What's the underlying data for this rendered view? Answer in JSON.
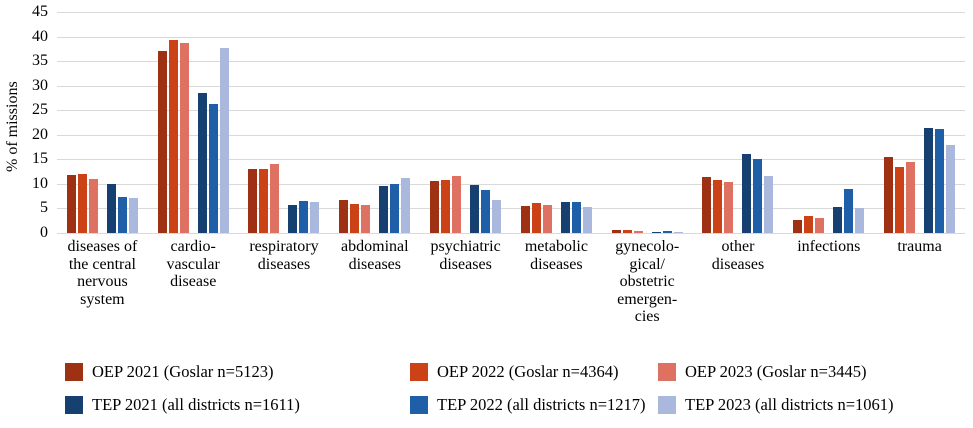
{
  "chart_data": {
    "type": "bar",
    "title": "",
    "ylabel": "% of missions",
    "xlabel": "",
    "ylim": [
      0,
      45
    ],
    "ytick_step": 5,
    "grid": true,
    "legend_position": "bottom",
    "categories": [
      "diseases of the central nervous system",
      "cardio-vascular disease",
      "respiratory diseases",
      "abdominal diseases",
      "psychiatric diseases",
      "metabolic diseases",
      "gynecological/ obstetric emergencies",
      "other diseases",
      "infections",
      "trauma"
    ],
    "category_label_lines": [
      [
        "diseases of",
        "the central",
        "nervous",
        "system"
      ],
      [
        "cardio-",
        "vascular",
        "disease"
      ],
      [
        "respiratory",
        "diseases"
      ],
      [
        "abdominal",
        "diseases"
      ],
      [
        "psychiatric",
        "diseases"
      ],
      [
        "metabolic",
        "diseases"
      ],
      [
        "gynecolo-",
        "gical/",
        "obstetric",
        "emergen-",
        "cies"
      ],
      [
        "other",
        "diseases"
      ],
      [
        "infections"
      ],
      [
        "trauma"
      ]
    ],
    "series": [
      {
        "name": "OEP 2021 (Goslar n=5123)",
        "color": "#9e3114",
        "values": [
          11.8,
          37.0,
          13.0,
          6.8,
          10.6,
          5.5,
          0.7,
          11.5,
          2.7,
          15.5
        ]
      },
      {
        "name": "OEP 2022 (Goslar n=4364)",
        "color": "#cc4217",
        "values": [
          12.0,
          39.4,
          13.0,
          6.0,
          10.8,
          6.1,
          0.7,
          10.8,
          3.4,
          13.4
        ]
      },
      {
        "name": "OEP 2023 (Goslar n=3445)",
        "color": "#df7163",
        "values": [
          11.1,
          38.6,
          14.0,
          5.7,
          11.6,
          5.7,
          0.4,
          10.4,
          3.0,
          14.5
        ]
      },
      {
        "name": "TEP 2021 (all districts n=1611)",
        "color": "#16406f",
        "values": [
          9.9,
          28.6,
          5.8,
          9.5,
          9.7,
          6.4,
          0.1,
          16.0,
          5.3,
          21.4
        ]
      },
      {
        "name": "TEP 2022 (all districts n=1217)",
        "color": "#1f5fa8",
        "values": [
          7.3,
          26.3,
          6.6,
          10.0,
          8.7,
          6.3,
          0.5,
          15.0,
          9.0,
          21.2
        ]
      },
      {
        "name": "TEP 2023 (all districts n=1061)",
        "color": "#a9b8dc",
        "values": [
          7.2,
          37.7,
          6.3,
          11.2,
          6.7,
          5.3,
          0.1,
          11.6,
          5.0,
          17.9
        ]
      }
    ],
    "colors": {
      "gridline": "#d9d9d9",
      "text": "#000000",
      "background": "#ffffff"
    }
  },
  "layout_text": {
    "y_axis_title": "% of missions"
  }
}
